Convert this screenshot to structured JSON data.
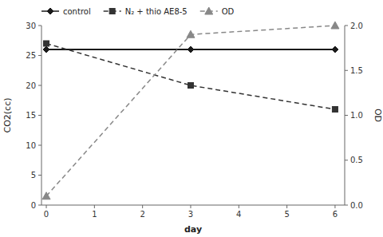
{
  "chart_data": {
    "type": "line",
    "x_label": "day",
    "y_label": "CO2(cc)",
    "y2_label": "OD",
    "x": [
      0,
      3,
      6
    ],
    "xlim": [
      -0.1,
      6.2
    ],
    "xticks": [
      0,
      1,
      2,
      3,
      4,
      5,
      6
    ],
    "ylim": [
      0,
      30
    ],
    "yticks": [
      0,
      5,
      10,
      15,
      20,
      25,
      30
    ],
    "y2lim": [
      0,
      2
    ],
    "y2ticks": [
      {
        "value": 0,
        "label": "0.0"
      },
      0.5,
      {
        "value": 1,
        "label": "1.0"
      },
      1.5,
      {
        "value": 2,
        "label": "2.0"
      }
    ],
    "grid": false,
    "legend": "upper left",
    "series": [
      {
        "name": "control",
        "color": "#1a1a1a",
        "values": [
          26,
          26,
          26
        ],
        "marker": "diamond",
        "line_style": "solid"
      },
      {
        "name": "N₂ + thio AE8-5",
        "color": "#333333",
        "values": [
          27,
          20,
          16
        ],
        "marker": "square",
        "line_style": "dashed"
      },
      {
        "name": "OD",
        "color": "#888888",
        "values": [
          0.1,
          1.9,
          2.0
        ],
        "marker": "triangle",
        "line_style": "dashed",
        "axis": "y2"
      }
    ]
  }
}
